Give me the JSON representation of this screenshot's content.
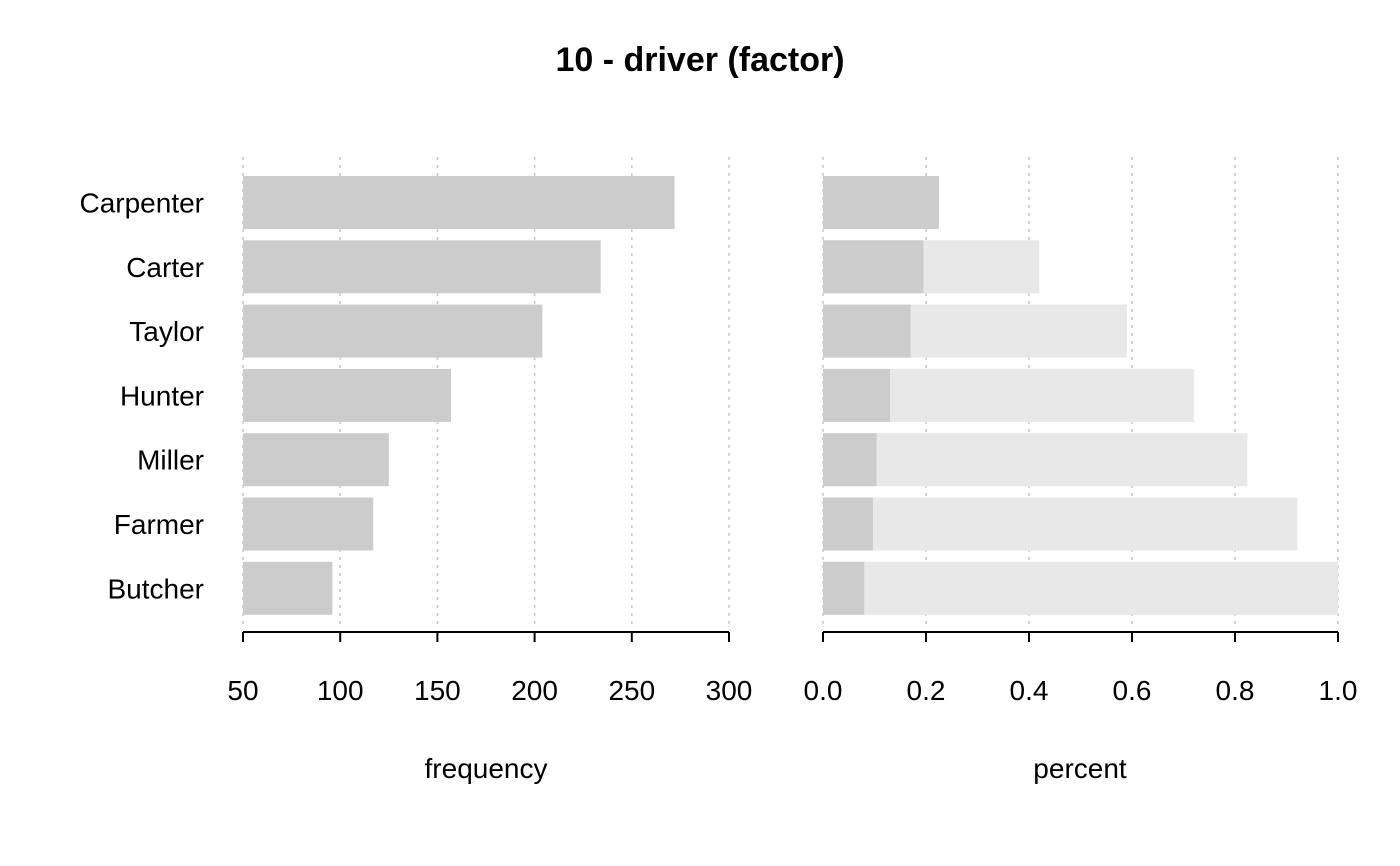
{
  "chart_data": {
    "type": "bar",
    "title": "10 - driver (factor)",
    "categories": [
      "Carpenter",
      "Carter",
      "Taylor",
      "Hunter",
      "Miller",
      "Farmer",
      "Butcher"
    ],
    "panels": [
      {
        "kind": "frequency",
        "xlabel": "frequency",
        "xlim": [
          50,
          300
        ],
        "ticks": [
          "50",
          "100",
          "150",
          "200",
          "250",
          "300"
        ],
        "tick_values": [
          50,
          100,
          150,
          200,
          250,
          300
        ],
        "values": [
          272,
          234,
          204,
          157,
          125,
          117,
          96
        ],
        "bar_color": "#cccccc"
      },
      {
        "kind": "percent",
        "xlabel": "percent",
        "xlim": [
          0,
          1
        ],
        "ticks": [
          "0.0",
          "0.2",
          "0.4",
          "0.6",
          "0.8",
          "1.0"
        ],
        "tick_values": [
          0,
          0.2,
          0.4,
          0.6,
          0.8,
          1.0
        ],
        "series": [
          {
            "name": "",
            "values": [
              0.225,
              0.195,
              0.17,
              0.13,
              0.104,
              0.097,
              0.08
            ],
            "color": "#cccccc"
          },
          {
            "name": "",
            "values": [
              0.225,
              0.42,
              0.59,
              0.72,
              0.824,
              0.921,
              1.0
            ],
            "color": "#e8e8e8"
          }
        ]
      }
    ],
    "grid": true,
    "grid_color": "#cccccc"
  }
}
